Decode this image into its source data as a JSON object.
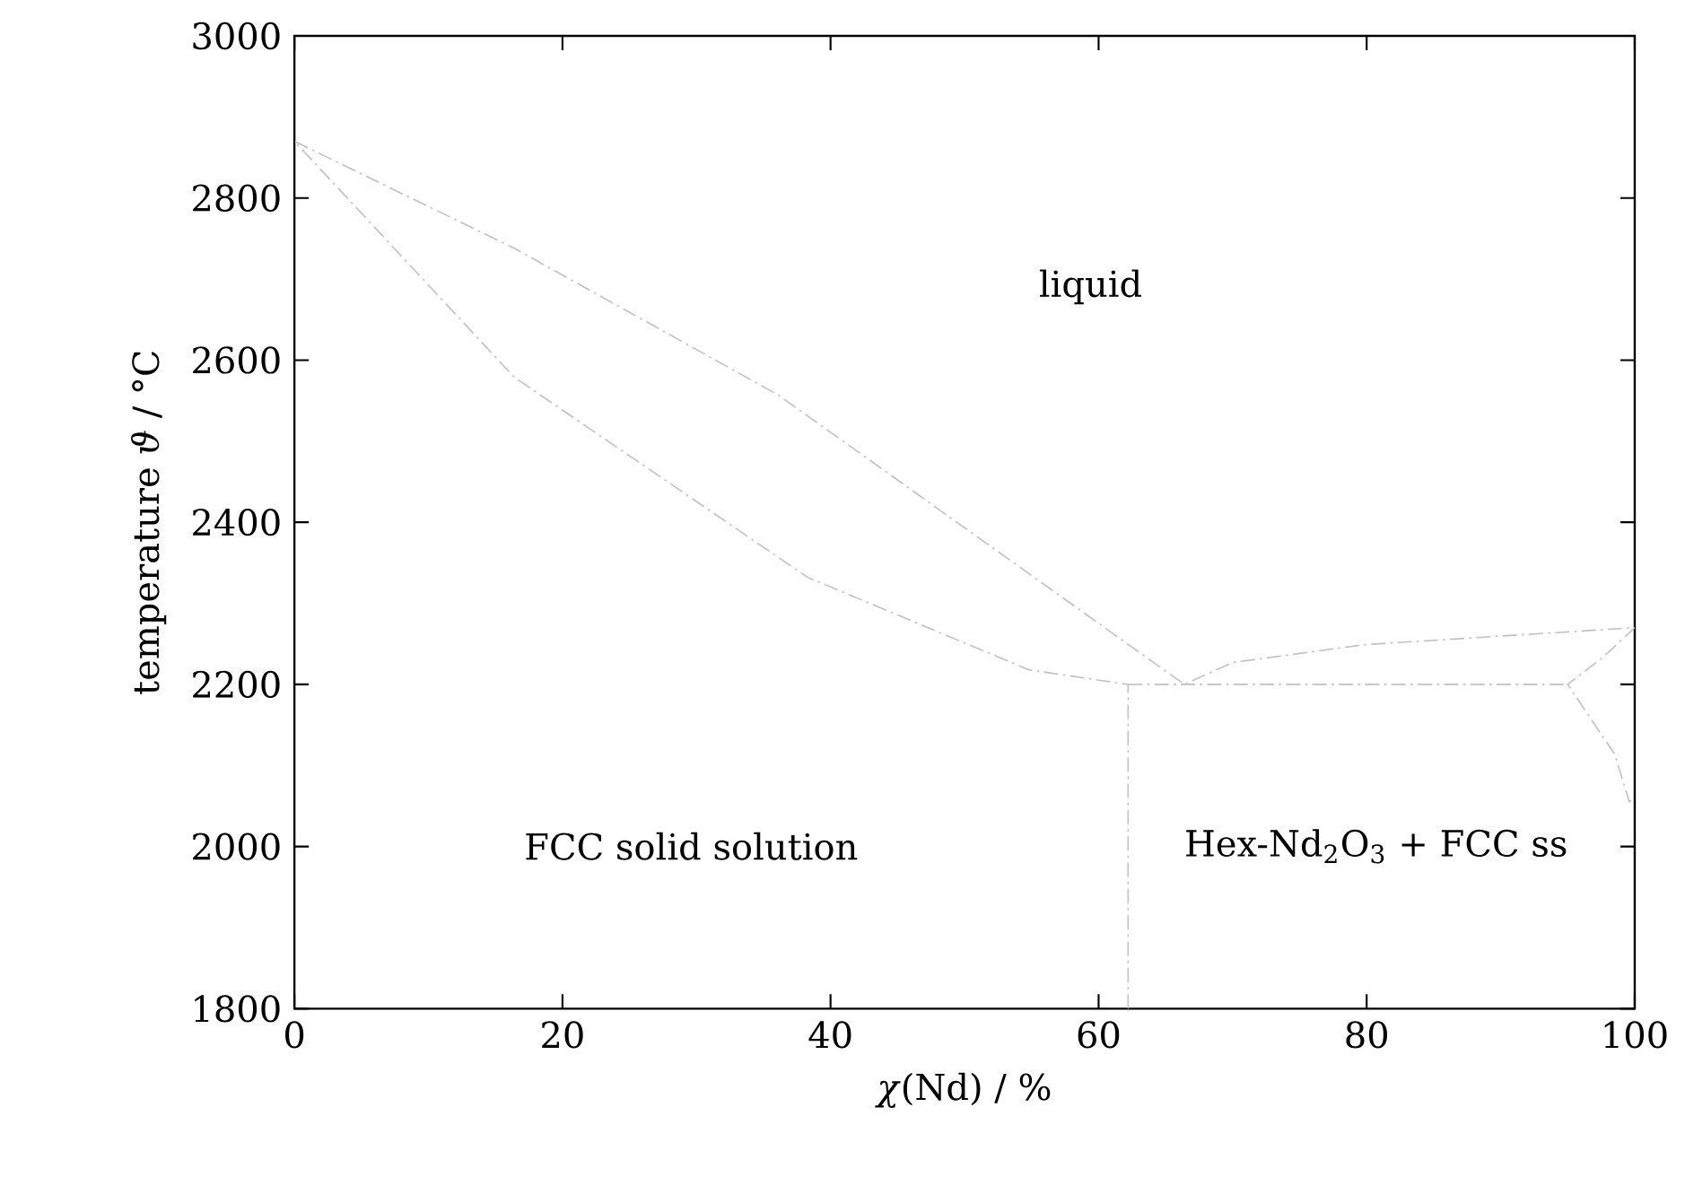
{
  "chart_data": {
    "type": "line",
    "xlabel": "*χ*(Nd) / %",
    "ylabel": "temperature *ϑ* / °C",
    "xlim": [
      0,
      100
    ],
    "ylim": [
      1800,
      3000
    ],
    "xticks": [
      0,
      20,
      40,
      60,
      80,
      100
    ],
    "yticks": [
      1800,
      2000,
      2200,
      2400,
      2600,
      2800,
      3000
    ],
    "line_style": "dashdot",
    "marker": "none",
    "series": [
      {
        "color": "#c0c0c0",
        "x": [
          62.2,
          62.2,
          54.8,
          38.3,
          16.4,
          0,
          16.4,
          36.1,
          66.4,
          70.0,
          79.8,
          100,
          97.6,
          95.0,
          98.5,
          99.6,
          100
        ],
        "values": [
          1800,
          2200,
          2218,
          2332,
          2579,
          2870,
          2738,
          2557,
          2200,
          2227,
          2249,
          2270,
          2233,
          2200,
          2114,
          2055,
          2060
        ]
      },
      {
        "color": "#c0c0c0",
        "x": [
          62.2,
          95.0
        ],
        "values": [
          2200,
          2200
        ]
      }
    ],
    "annotations": [
      "liquid",
      "FCC solid solution",
      "Hex-Nd$_{2}$O$_{3}$ + FCC ss"
    ]
  }
}
